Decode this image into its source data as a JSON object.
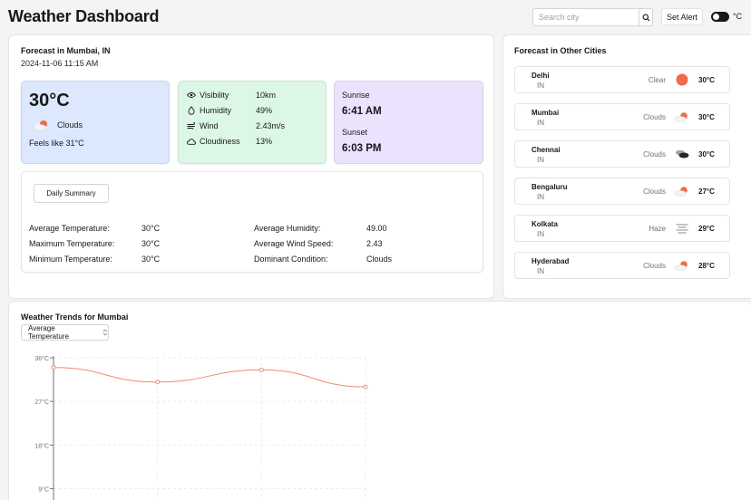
{
  "header": {
    "title": "Weather Dashboard",
    "search_placeholder": "Search city",
    "set_alert_label": "Set Alert",
    "unit_label": "°C"
  },
  "current": {
    "location_title": "Forecast in Mumbai, IN",
    "datetime": "2024-11-06 11:15 AM",
    "temperature": "30°C",
    "condition": "Clouds",
    "feels_like": "Feels like 31°C",
    "stats": [
      {
        "label": "Visibility",
        "value": "10km",
        "icon": "eye-icon"
      },
      {
        "label": "Humidity",
        "value": "49%",
        "icon": "droplet-icon"
      },
      {
        "label": "Wind",
        "value": "2.43m/s",
        "icon": "wind-icon"
      },
      {
        "label": "Cloudiness",
        "value": "13%",
        "icon": "cloud-icon"
      }
    ],
    "sunrise_label": "Sunrise",
    "sunrise_time": "6:41 AM",
    "sunset_label": "Sunset",
    "sunset_time": "6:03 PM"
  },
  "summary": {
    "button_label": "Daily Summary",
    "items": [
      {
        "label": "Average Temperature:",
        "value": "30°C"
      },
      {
        "label": "Maximum Temperature:",
        "value": "30°C"
      },
      {
        "label": "Minimum Temperature:",
        "value": "30°C"
      },
      {
        "label": "Average Humidity:",
        "value": "49.00"
      },
      {
        "label": "Average Wind Speed:",
        "value": "2.43"
      },
      {
        "label": "Dominant Condition:",
        "value": "Clouds"
      }
    ]
  },
  "cities": {
    "title": "Forecast in Other Cities",
    "items": [
      {
        "name": "Delhi",
        "country": "IN",
        "condition": "Clear",
        "temp": "30°C",
        "icon": "sun-icon"
      },
      {
        "name": "Mumbai",
        "country": "IN",
        "condition": "Clouds",
        "temp": "30°C",
        "icon": "sun-cloud-icon"
      },
      {
        "name": "Chennai",
        "country": "IN",
        "condition": "Clouds",
        "temp": "30°C",
        "icon": "dark-clouds-icon"
      },
      {
        "name": "Bengaluru",
        "country": "IN",
        "condition": "Clouds",
        "temp": "27°C",
        "icon": "sun-cloud-icon"
      },
      {
        "name": "Kolkata",
        "country": "IN",
        "condition": "Haze",
        "temp": "29°C",
        "icon": "haze-icon"
      },
      {
        "name": "Hyderabad",
        "country": "IN",
        "condition": "Clouds",
        "temp": "28°C",
        "icon": "sun-cloud-icon"
      }
    ]
  },
  "trends": {
    "title": "Weather Trends for Mumbai",
    "metric_selected": "Average Temperature"
  },
  "colors": {
    "line": "#f28b6e",
    "sun": "#ee6b4d"
  },
  "chart_data": {
    "type": "line",
    "y_ticks": [
      "36°C",
      "27°C",
      "18°C",
      "9°C"
    ],
    "y_tick_values": [
      36,
      27,
      18,
      9
    ],
    "ylim": [
      0,
      36
    ],
    "series": [
      {
        "values": [
          34,
          31,
          33.5,
          30
        ]
      }
    ],
    "grid": true
  }
}
